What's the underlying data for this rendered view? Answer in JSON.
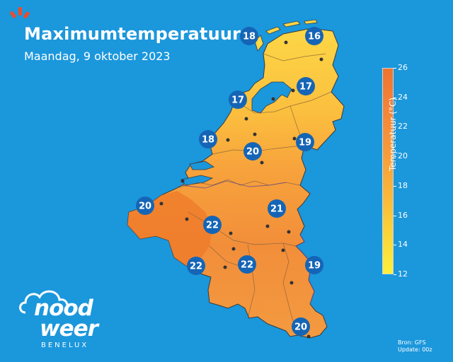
{
  "title": "Maximumtemperatuur",
  "subtitle": "Maandag, 9 oktober 2023",
  "legend": {
    "label": "Temperatuur (°C)",
    "ticks": [
      "26",
      "24",
      "22",
      "20",
      "18",
      "16",
      "14",
      "12"
    ],
    "colors": [
      "#fdf03a",
      "#fbd33a",
      "#f9b43a",
      "#f79a3a",
      "#f3843a",
      "#f0742e"
    ]
  },
  "stations": [
    {
      "value": "18"
    },
    {
      "value": "16"
    },
    {
      "value": "17"
    },
    {
      "value": "17"
    },
    {
      "value": "18"
    },
    {
      "value": "20"
    },
    {
      "value": "19"
    },
    {
      "value": "20"
    },
    {
      "value": "21"
    },
    {
      "value": "22"
    },
    {
      "value": "22"
    },
    {
      "value": "22"
    },
    {
      "value": "19"
    },
    {
      "value": "20"
    }
  ],
  "brand": {
    "line1": "nood",
    "line2": "weer",
    "line3": "BENELUX"
  },
  "source": {
    "line1": "Bron: GFS",
    "line2": "Update: 00z"
  },
  "colors": {
    "background": "#1b97dc",
    "marker": "#1565b6",
    "north": "#fbbf3e",
    "south": "#f0883a"
  }
}
